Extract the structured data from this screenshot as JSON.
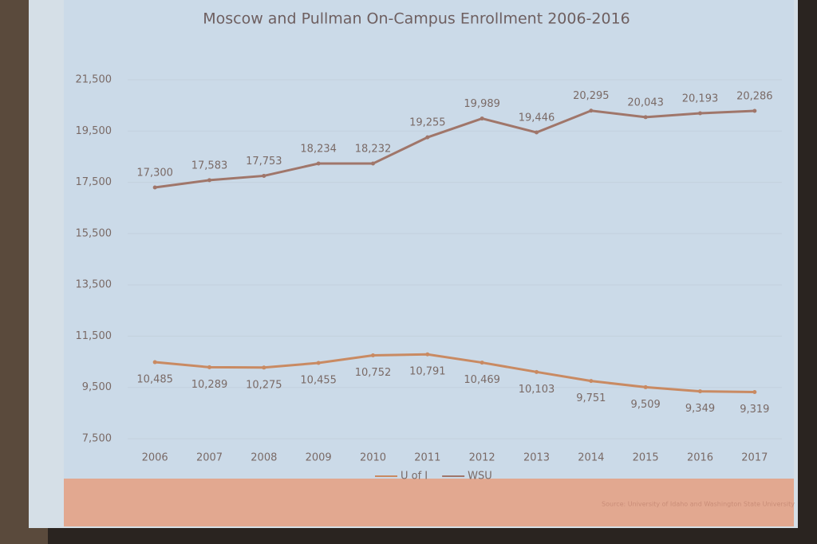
{
  "chart_data": {
    "type": "line",
    "title": "Moscow and Pullman On-Campus Enrollment 2006-2016",
    "categories": [
      "2006",
      "2007",
      "2008",
      "2009",
      "2010",
      "2011",
      "2012",
      "2013",
      "2014",
      "2015",
      "2016",
      "2017"
    ],
    "series": [
      {
        "name": "U of I",
        "color": "#c98a62",
        "values": [
          10485,
          10289,
          10275,
          10455,
          10752,
          10791,
          10469,
          10103,
          9751,
          9509,
          9349,
          9319
        ],
        "value_labels": [
          "10,485",
          "10,289",
          "10,275",
          "10,455",
          "10,752",
          "10,791",
          "10,469",
          "10,103",
          "9,751",
          "9,509",
          "9,349",
          "9,319"
        ]
      },
      {
        "name": "WSU",
        "color": "#a0766a",
        "values": [
          17300,
          17583,
          17753,
          18234,
          18232,
          19255,
          19989,
          19446,
          20295,
          20043,
          20193,
          20286
        ],
        "value_labels": [
          "17,300",
          "17,583",
          "17,753",
          "18,234",
          "18,232",
          "19,255",
          "19,989",
          "19,446",
          "20,295",
          "20,043",
          "20,193",
          "20,286"
        ]
      }
    ],
    "ylim": [
      7500,
      21500
    ],
    "yticks": [
      {
        "value": 7500,
        "label": "7,500"
      },
      {
        "value": 9500,
        "label": "9,500"
      },
      {
        "value": 11500,
        "label": "11,500"
      },
      {
        "value": 13500,
        "label": "13,500"
      },
      {
        "value": 15500,
        "label": "15,500"
      },
      {
        "value": 17500,
        "label": "17,500"
      },
      {
        "value": 19500,
        "label": "19,500"
      },
      {
        "value": 21500,
        "label": "21,500"
      }
    ],
    "grid": true,
    "legend": "bottom",
    "source": "Source: University of Idaho and Washington State University"
  }
}
